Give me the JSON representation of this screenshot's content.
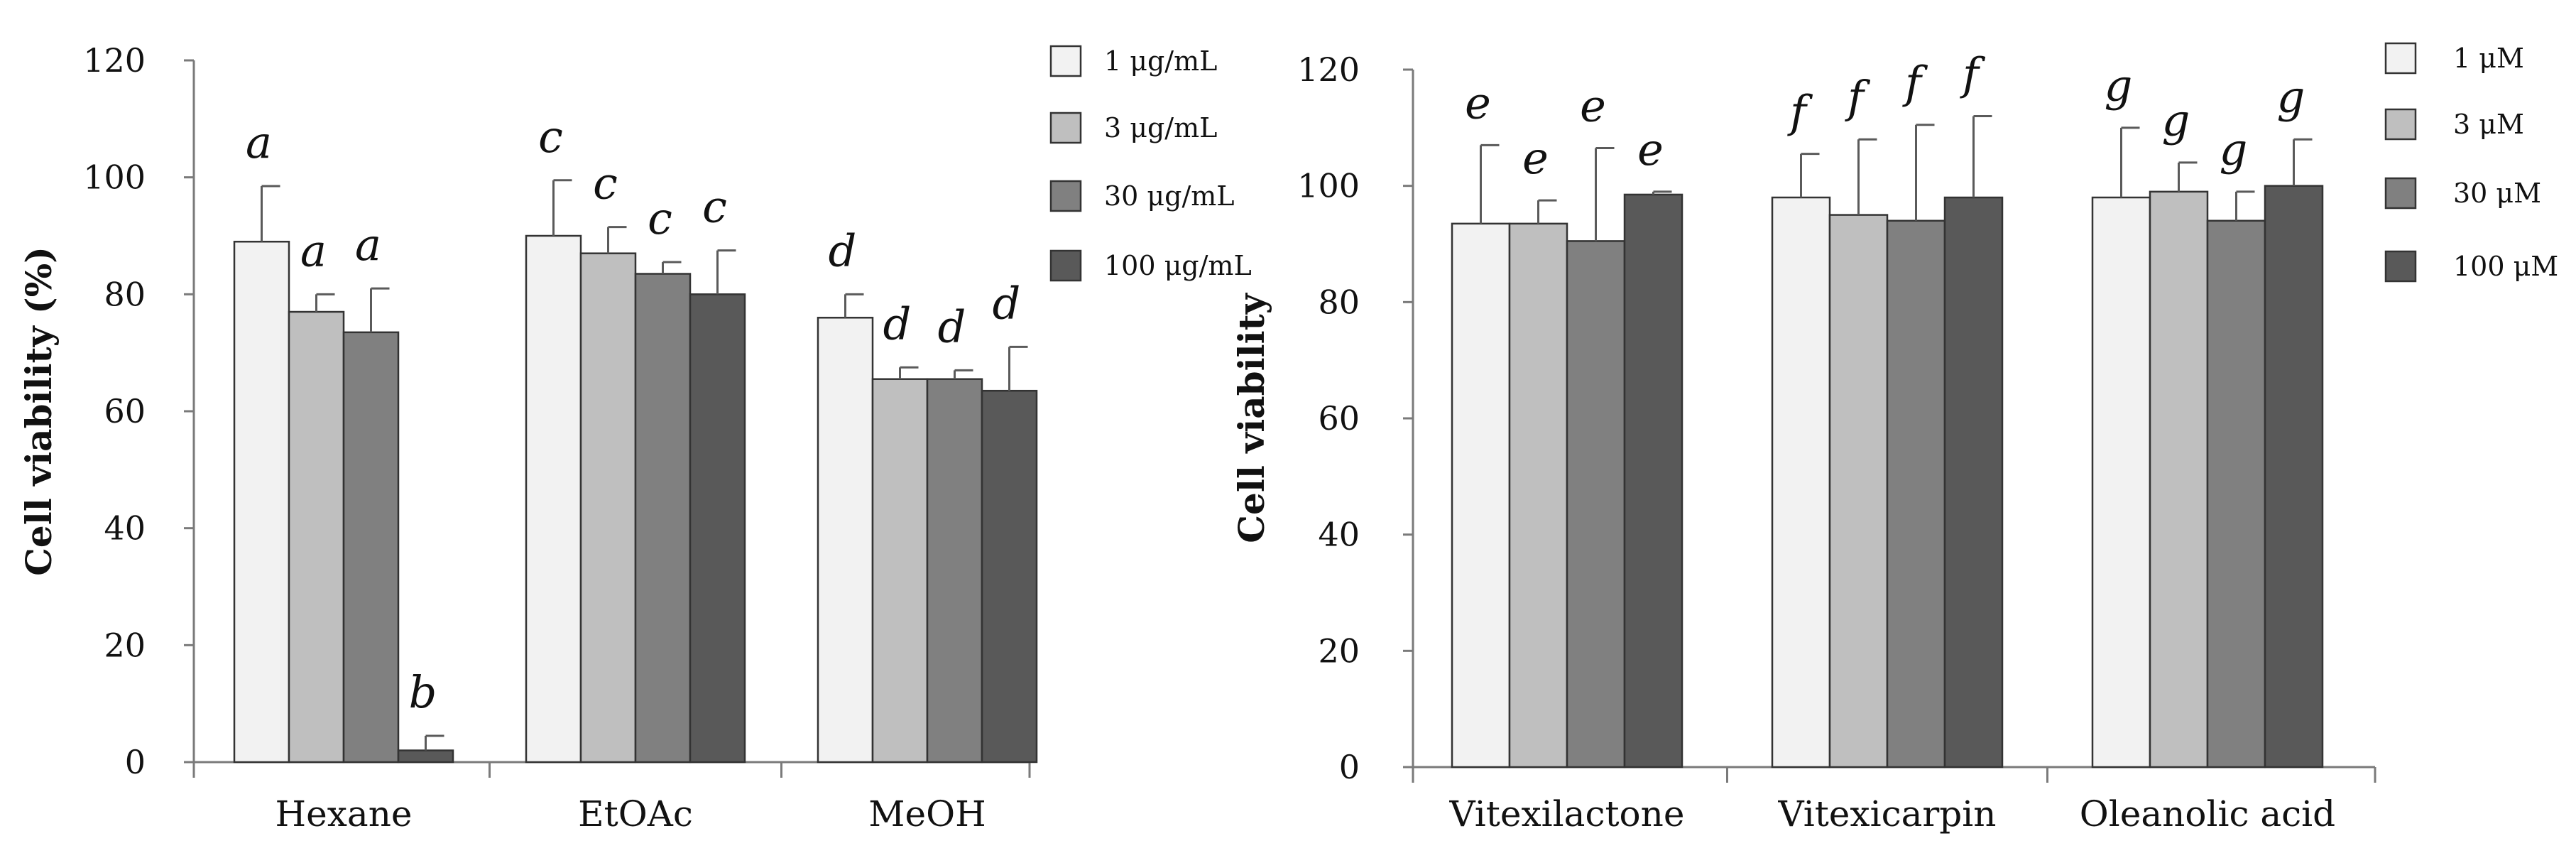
{
  "chart_data": [
    {
      "type": "bar",
      "title": "",
      "xlabel": "",
      "ylabel": "Cell viability (%)",
      "ylim": [
        0,
        120
      ],
      "yticks": [
        0,
        20,
        40,
        60,
        80,
        100,
        120
      ],
      "categories": [
        "Hexane",
        "EtOAc",
        "MeOH"
      ],
      "series": [
        {
          "name": "1 μg/mL",
          "color": "#f2f2f2",
          "values": [
            89,
            90,
            76
          ],
          "errors": [
            9.5,
            9.5,
            4
          ],
          "letters": [
            "a",
            "c",
            "d"
          ]
        },
        {
          "name": "3 μg/mL",
          "color": "#bfbfbf",
          "values": [
            77,
            87,
            65.5
          ],
          "errors": [
            3,
            4.5,
            2
          ],
          "letters": [
            "a",
            "c",
            "d"
          ]
        },
        {
          "name": "30 μg/mL",
          "color": "#808080",
          "values": [
            73.5,
            83.5,
            65.5
          ],
          "errors": [
            7.5,
            2,
            1.5
          ],
          "letters": [
            "a",
            "c",
            "d"
          ]
        },
        {
          "name": "100 μg/mL",
          "color": "#595959",
          "values": [
            2,
            80,
            63.5
          ],
          "errors": [
            2.5,
            7.5,
            7.5
          ],
          "letters": [
            "b",
            "c",
            "d"
          ]
        }
      ],
      "legend_position": "top-right"
    },
    {
      "type": "bar",
      "title": "",
      "xlabel": "",
      "ylabel": "Cell viability",
      "ylim": [
        0,
        120
      ],
      "yticks": [
        0,
        20,
        40,
        60,
        80,
        100,
        120
      ],
      "categories": [
        "Vitexilactone",
        "Vitexicarpin",
        "Oleanolic acid"
      ],
      "series": [
        {
          "name": "1 μM",
          "color": "#f2f2f2",
          "values": [
            93.5,
            98,
            98
          ],
          "errors": [
            13.5,
            7.5,
            12
          ],
          "letters": [
            "e",
            "f",
            "g"
          ]
        },
        {
          "name": "3 μM",
          "color": "#bfbfbf",
          "values": [
            93.5,
            95,
            99
          ],
          "errors": [
            4,
            13,
            5
          ],
          "letters": [
            "e",
            "f",
            "g"
          ]
        },
        {
          "name": "30 μM",
          "color": "#808080",
          "values": [
            90.5,
            94,
            94
          ],
          "errors": [
            16,
            16.5,
            5
          ],
          "letters": [
            "e",
            "f",
            "g"
          ]
        },
        {
          "name": "100 μM",
          "color": "#595959",
          "values": [
            98.5,
            98,
            100
          ],
          "errors": [
            0.5,
            14,
            8
          ],
          "letters": [
            "e",
            "f",
            "g"
          ]
        }
      ],
      "legend_position": "top-right"
    }
  ]
}
